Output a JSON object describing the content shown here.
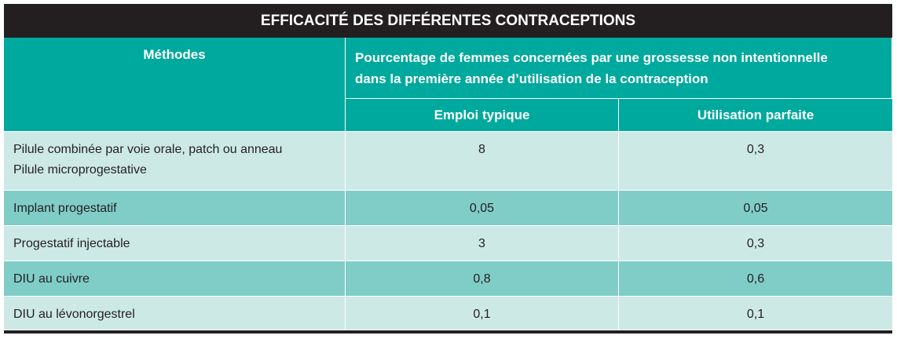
{
  "table": {
    "title": "EFFICACITÉ DES DIFFÉRENTES CONTRACEPTIONS",
    "header": {
      "methods": "Méthodes",
      "percentage": [
        "Pourcentage de femmes concernées par une grossesse non intentionnelle",
        "dans la première année d’utilisation de la contraception"
      ],
      "typical": "Emploi typique",
      "perfect": "Utilisation parfaite"
    },
    "rows": [
      {
        "method": [
          "Pilule combinée par voie orale, patch ou anneau",
          "Pilule microprogestative"
        ],
        "typical": "8",
        "perfect": "0,3"
      },
      {
        "method": [
          "Implant progestatif"
        ],
        "typical": "0,05",
        "perfect": "0,05"
      },
      {
        "method": [
          "Progestatif injectable"
        ],
        "typical": "3",
        "perfect": "0,3"
      },
      {
        "method": [
          "DIU au cuivre"
        ],
        "typical": "0,8",
        "perfect": "0,6"
      },
      {
        "method": [
          "DIU au lévonorgestrel"
        ],
        "typical": "0,1",
        "perfect": "0,1"
      }
    ]
  }
}
